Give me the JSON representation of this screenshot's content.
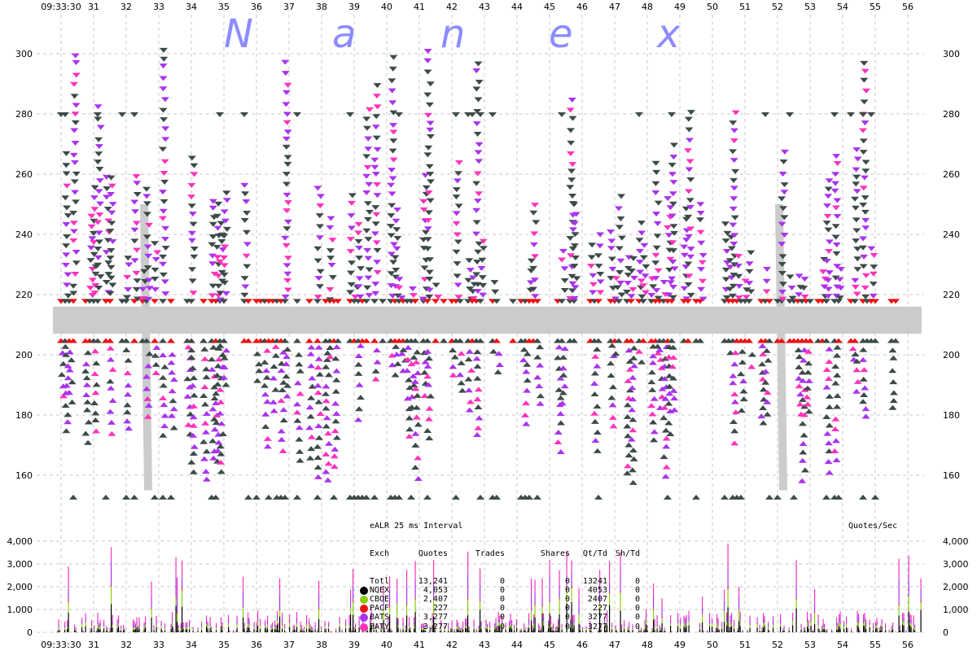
{
  "chart_data": {
    "type": "scatter",
    "title": "eALR 25 ms Interval",
    "watermark": "Nanex",
    "x_ticks": [
      "09:33:30",
      "31",
      "32",
      "33",
      "34",
      "35",
      "36",
      "37",
      "38",
      "39",
      "40",
      "41",
      "42",
      "43",
      "44",
      "45",
      "46",
      "47",
      "48",
      "49",
      "50",
      "51",
      "52",
      "53",
      "54",
      "55",
      "56"
    ],
    "upper_panel": {
      "ylim": [
        150,
        312
      ],
      "y_ticks": [
        160,
        180,
        200,
        220,
        240,
        260,
        280,
        300
      ],
      "y_tick_labels": [
        "160",
        "180",
        "200",
        "220",
        "240",
        "260",
        "280",
        "300"
      ],
      "nbbo_band": [
        207,
        216
      ]
    },
    "lower_panel": {
      "type": "bar",
      "ylabel": "Quotes/Sec",
      "ylim": [
        0,
        4300
      ],
      "y_ticks": [
        0,
        1000,
        2000,
        3000,
        4000
      ],
      "y_tick_labels": [
        "0",
        "1,000",
        "2,000",
        "3,000",
        "4,000"
      ]
    },
    "colors": {
      "NQEX": "#000000",
      "CBOE": "#88cc11",
      "PACF": "#ee1111",
      "BATS": "#aa33ee",
      "BATY": "#ff33bb",
      "ask_marker": "#3d4a4a",
      "band": "#cccccc",
      "grid": "#c8c8c8",
      "watermark": "#8c8cff"
    },
    "legend": {
      "header": [
        "Exch",
        "Quotes",
        "Trades",
        "Shares",
        "Qt/Td",
        "Sh/Td"
      ],
      "rows": [
        {
          "exch": "Totl",
          "quotes": "13,241",
          "trades": "0",
          "shares": "0",
          "qt_td": "13241",
          "sh_td": "0",
          "color": ""
        },
        {
          "exch": "NQEX",
          "quotes": "4,053",
          "trades": "0",
          "shares": "0",
          "qt_td": "4053",
          "sh_td": "0",
          "color": "#000000"
        },
        {
          "exch": "CBOE",
          "quotes": "2,407",
          "trades": "0",
          "shares": "0",
          "qt_td": "2407",
          "sh_td": "0",
          "color": "#88cc11"
        },
        {
          "exch": "PACF",
          "quotes": "227",
          "trades": "0",
          "shares": "0",
          "qt_td": "227",
          "sh_td": "0",
          "color": "#ee1111"
        },
        {
          "exch": "BATS",
          "quotes": "3,277",
          "trades": "0",
          "shares": "0",
          "qt_td": "3277",
          "sh_td": "0",
          "color": "#aa33ee"
        },
        {
          "exch": "BATY",
          "quotes": "3,277",
          "trades": "0",
          "shares": "0",
          "qt_td": "3277",
          "sh_td": "0",
          "color": "#ff33bb"
        }
      ]
    },
    "generator_seed": 7
  }
}
